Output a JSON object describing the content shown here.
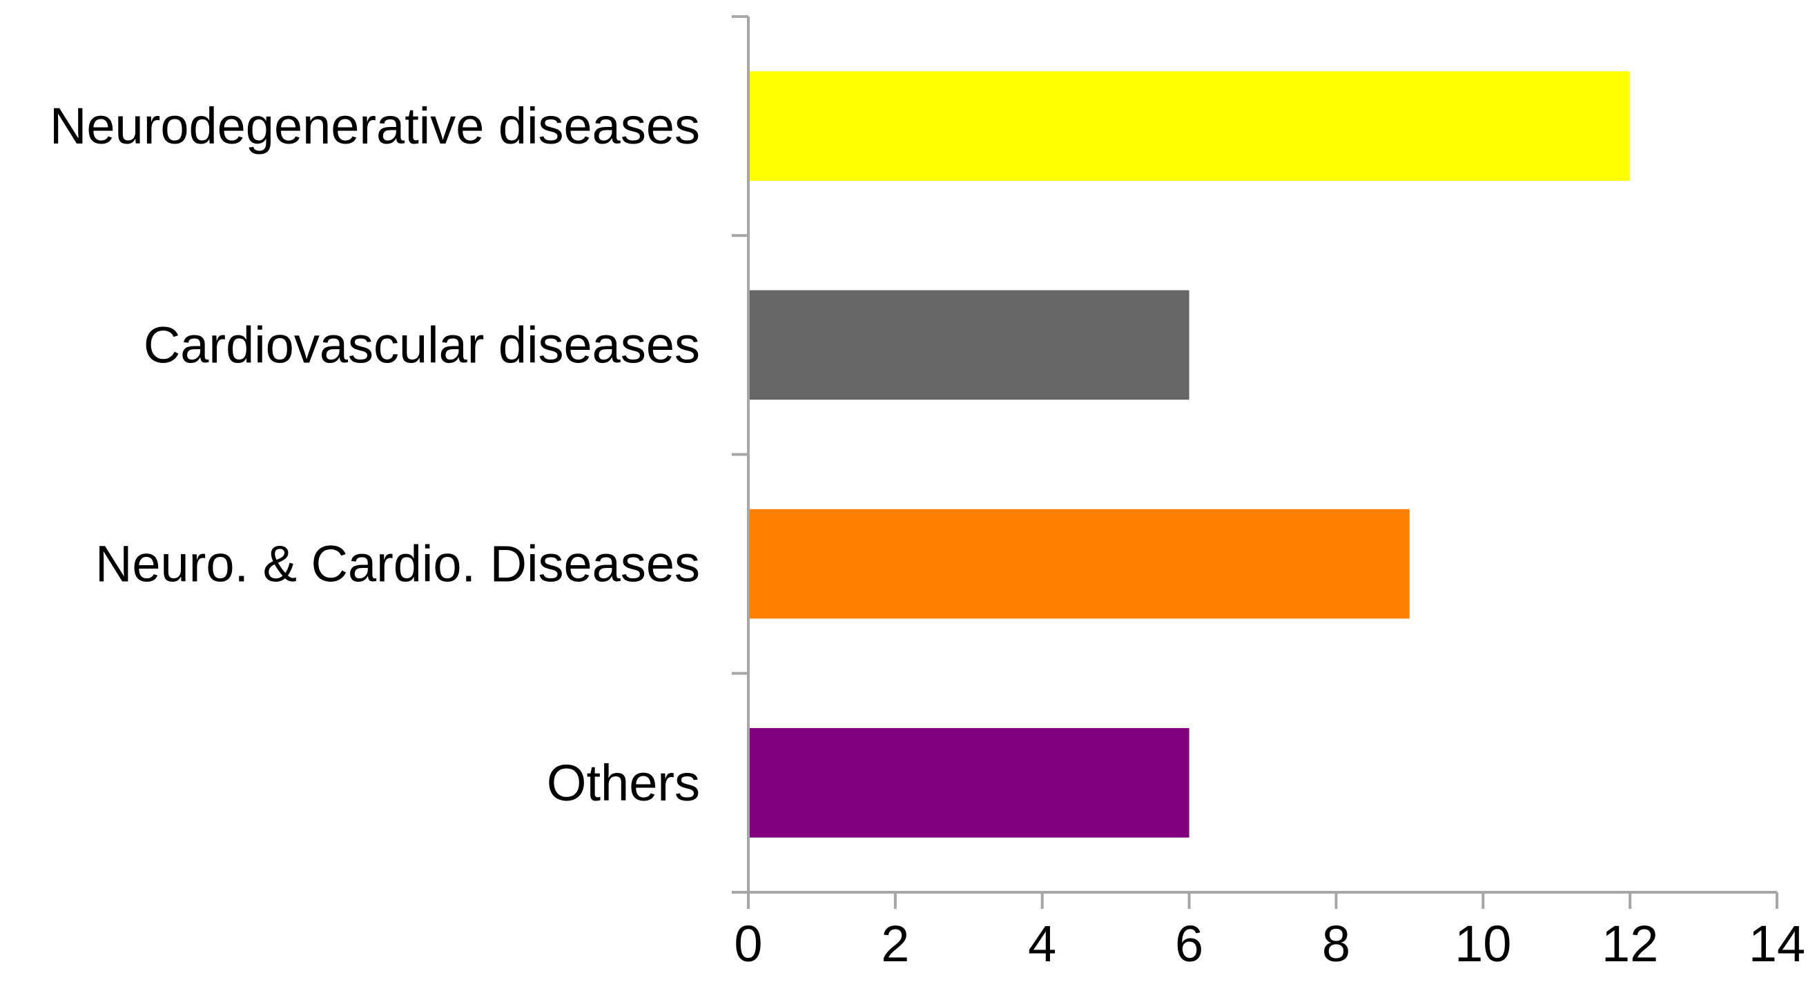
{
  "chart_data": {
    "type": "bar",
    "orientation": "horizontal",
    "categories": [
      "Neurodegenerative diseases",
      "Cardiovascular diseases",
      "Neuro. & Cardio. Diseases",
      "Others"
    ],
    "values": [
      12,
      6,
      9,
      6
    ],
    "colors": [
      "#ffff00",
      "#666666",
      "#ff8000",
      "#800080"
    ],
    "xlim": [
      0,
      14
    ],
    "xticks": [
      0,
      2,
      4,
      6,
      8,
      10,
      12,
      14
    ],
    "xtick_labels": [
      "0",
      "2",
      "4",
      "6",
      "8",
      "10",
      "12",
      "14"
    ],
    "grid": false,
    "legend": "none",
    "axis_color": "#a6a6a6",
    "title": "",
    "xlabel": "",
    "ylabel": ""
  }
}
